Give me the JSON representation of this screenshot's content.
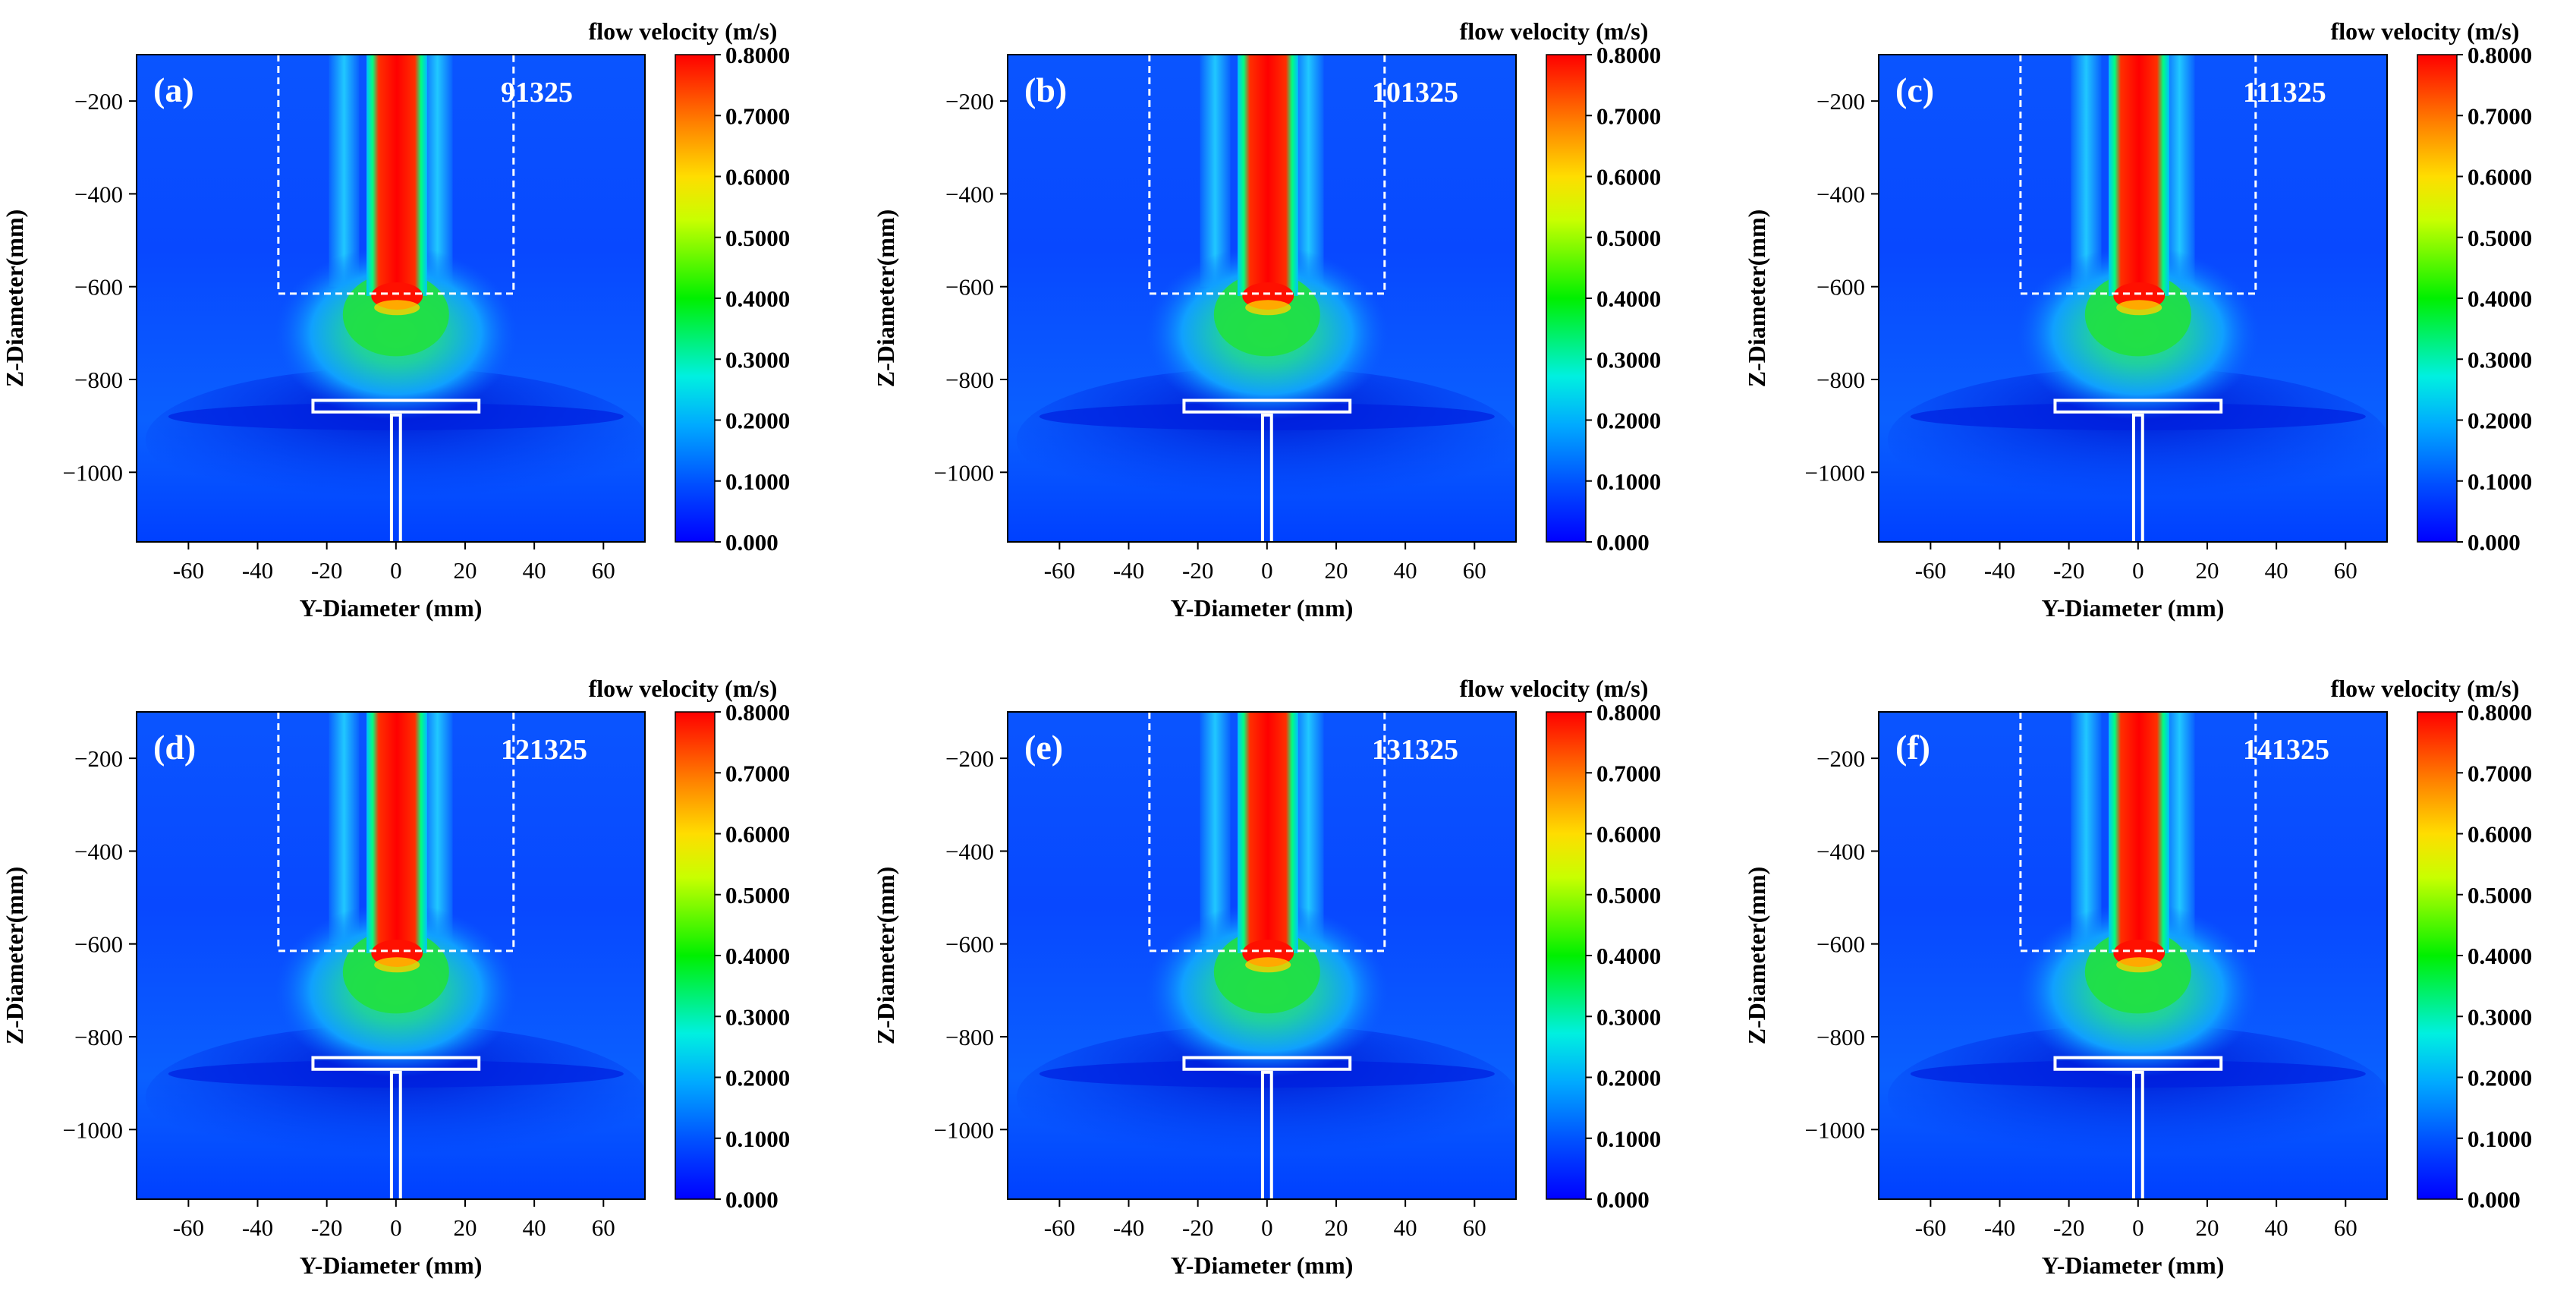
{
  "chart_data": {
    "type": "heatmap",
    "colorbar": {
      "title": "flow velocity (m/s)",
      "ticks": [
        "0.8000",
        "0.7000",
        "0.6000",
        "0.5000",
        "0.4000",
        "0.3000",
        "0.2000",
        "0.1000",
        "0.000"
      ],
      "range": [
        0,
        0.8
      ],
      "colormap": [
        "#0000ff",
        "#00aaff",
        "#00ffd0",
        "#00ff00",
        "#c8ff00",
        "#ffff00",
        "#ff8000",
        "#ff0000"
      ]
    },
    "xaxis": {
      "label": "Y-Diameter (mm)",
      "ticks": [
        "-60",
        "-40",
        "-20",
        "0",
        "20",
        "40",
        "60"
      ],
      "range": [
        -75,
        72
      ]
    },
    "yaxis": {
      "label": "Z-Diameter(mm)",
      "ticks": [
        "-200",
        "-400",
        "-600",
        "-800",
        "-1000"
      ],
      "range": [
        -1150,
        -100
      ]
    },
    "panels": [
      {
        "tag": "(a)",
        "pressure": "91325"
      },
      {
        "tag": "(b)",
        "pressure": "101325"
      },
      {
        "tag": "(c)",
        "pressure": "111325"
      },
      {
        "tag": "(d)",
        "pressure": "121325"
      },
      {
        "tag": "(e)",
        "pressure": "131325"
      },
      {
        "tag": "(f)",
        "pressure": "141325"
      }
    ]
  }
}
